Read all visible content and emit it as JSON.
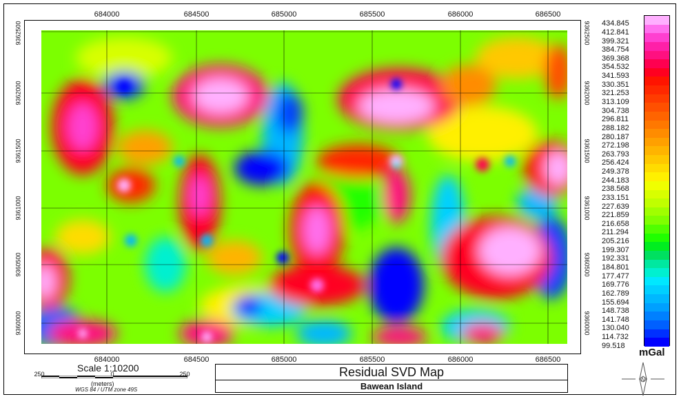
{
  "map": {
    "x_ticks": [
      "684000",
      "684500",
      "685000",
      "685500",
      "686000",
      "686500"
    ],
    "y_ticks": [
      "9362500",
      "9362000",
      "9361500",
      "9361000",
      "9360500",
      "9360000"
    ],
    "colormap": "rainbow"
  },
  "legend": {
    "unit": "mGal",
    "values": [
      "434.845",
      "412.841",
      "399.321",
      "384.754",
      "369.368",
      "354.532",
      "341.593",
      "330.351",
      "321.253",
      "313.109",
      "304.738",
      "296.811",
      "288.182",
      "280.187",
      "272.198",
      "263.793",
      "256.424",
      "249.378",
      "244.183",
      "238.568",
      "233.151",
      "227.639",
      "221.859",
      "216.658",
      "211.294",
      "205.216",
      "199.307",
      "192.331",
      "184.801",
      "177.477",
      "169.776",
      "162.789",
      "155.694",
      "148.738",
      "141.748",
      "130.040",
      "114.732",
      "99.518"
    ],
    "colors": [
      "#ffb0ff",
      "#ff70ee",
      "#ff40d0",
      "#ff20a8",
      "#ff1080",
      "#ff0050",
      "#ff0020",
      "#ff1400",
      "#ff2800",
      "#ff3c00",
      "#ff5000",
      "#ff6400",
      "#ff7800",
      "#ff8c00",
      "#ffa000",
      "#ffb400",
      "#ffc800",
      "#ffdc00",
      "#fff000",
      "#f0ff00",
      "#d8ff00",
      "#c0ff00",
      "#a0ff00",
      "#80ff00",
      "#50ff00",
      "#20ff00",
      "#00ee20",
      "#00e060",
      "#00e8a0",
      "#00f0d0",
      "#00e8ff",
      "#00d0ff",
      "#00b8ff",
      "#00a0ff",
      "#0080ff",
      "#0060ff",
      "#0030ff",
      "#0000ff"
    ]
  },
  "scale": {
    "title": "Scale 1:10200",
    "left_label": "250",
    "mid_label": "0",
    "right_label": "250",
    "units": "(meters)",
    "projection": "WGS 84 / UTM zone 49S"
  },
  "title_block": {
    "title": "Residual SVD Map",
    "subtitle": "Bawean Island"
  }
}
